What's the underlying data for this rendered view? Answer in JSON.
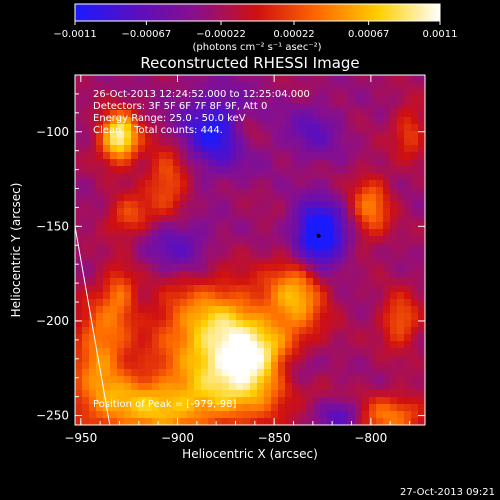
{
  "chart_data": {
    "type": "heatmap",
    "title": "Reconstructed RHESSI Image",
    "xlabel": "Heliocentric X (arcsec)",
    "ylabel": "Heliocentric Y (arcsec)",
    "xlim": [
      -953,
      -772
    ],
    "ylim": [
      -255,
      -70
    ],
    "x_ticks": [
      {
        "value": -950,
        "label": "−950"
      },
      {
        "value": -900,
        "label": "−900"
      },
      {
        "value": -850,
        "label": "−850"
      },
      {
        "value": -800,
        "label": "−800"
      }
    ],
    "y_ticks": [
      {
        "value": -100,
        "label": "−100"
      },
      {
        "value": -150,
        "label": "−150"
      },
      {
        "value": -200,
        "label": "−200"
      },
      {
        "value": -250,
        "label": "−250"
      }
    ],
    "colorbar": {
      "min": -0.0011,
      "max": 0.0011,
      "tick_values": [
        -0.0011,
        -0.00067,
        -0.00022,
        0.00022,
        0.00067,
        0.0011
      ],
      "tick_labels": [
        "−0.0011",
        "−0.00067",
        "−0.00022",
        "0.00022",
        "0.00067",
        "0.0011"
      ],
      "unit_label": "(photons cm⁻² s⁻¹ asec⁻²)",
      "colors": [
        "#1a1aff",
        "#5a0fc0",
        "#8a0f8a",
        "#d01010",
        "#ff6a00",
        "#ffd000",
        "#ffffff"
      ]
    },
    "annotations": {
      "time_range": "26-Oct-2013 12:24:52.000 to 12:25:04.000",
      "detectors": "Detectors: 3F 5F 6F 7F 8F 9F, Att 0",
      "energy_range": "Energy Range: 25.0 - 50.0 keV",
      "clean": "Clean    Total counts: 444.",
      "peak_position": "Position of Peak = [-979,-98]"
    },
    "peak_marker": {
      "x": -827,
      "y": -155
    },
    "limb_line": [
      {
        "x": -953,
        "y": -150
      },
      {
        "x": -935,
        "y": -255
      }
    ],
    "intensity_blobs": [
      {
        "x": -930,
        "y": -103,
        "amp": 1.0,
        "sx": 7,
        "sy": 9
      },
      {
        "x": -880,
        "y": -205,
        "amp": 0.75,
        "sx": 22,
        "sy": 18
      },
      {
        "x": -860,
        "y": -225,
        "amp": 0.8,
        "sx": 18,
        "sy": 14
      },
      {
        "x": -838,
        "y": -185,
        "amp": 0.6,
        "sx": 10,
        "sy": 14
      },
      {
        "x": -910,
        "y": -245,
        "amp": 0.7,
        "sx": 30,
        "sy": 12
      },
      {
        "x": -940,
        "y": -215,
        "amp": 0.55,
        "sx": 10,
        "sy": 18
      },
      {
        "x": -905,
        "y": -125,
        "amp": 0.45,
        "sx": 8,
        "sy": 14
      },
      {
        "x": -925,
        "y": -145,
        "amp": 0.4,
        "sx": 8,
        "sy": 8
      },
      {
        "x": -800,
        "y": -140,
        "amp": 0.5,
        "sx": 7,
        "sy": 12
      },
      {
        "x": -785,
        "y": -200,
        "amp": 0.45,
        "sx": 7,
        "sy": 10
      },
      {
        "x": -790,
        "y": -250,
        "amp": 0.5,
        "sx": 14,
        "sy": 8
      },
      {
        "x": -930,
        "y": -185,
        "amp": 0.4,
        "sx": 6,
        "sy": 10
      },
      {
        "x": -865,
        "y": -100,
        "amp": 0.3,
        "sx": 6,
        "sy": 8
      },
      {
        "x": -780,
        "y": -100,
        "amp": 0.35,
        "sx": 6,
        "sy": 10
      },
      {
        "x": -827,
        "y": -155,
        "amp": -0.9,
        "sx": 9,
        "sy": 12
      },
      {
        "x": -880,
        "y": -100,
        "amp": -0.6,
        "sx": 14,
        "sy": 14
      },
      {
        "x": -840,
        "y": -225,
        "amp": -0.5,
        "sx": 10,
        "sy": 8
      },
      {
        "x": -815,
        "y": -250,
        "amp": -0.45,
        "sx": 8,
        "sy": 6
      },
      {
        "x": -900,
        "y": -160,
        "amp": -0.35,
        "sx": 12,
        "sy": 10
      },
      {
        "x": -830,
        "y": -100,
        "amp": -0.3,
        "sx": 10,
        "sy": 10
      }
    ]
  },
  "footer": {
    "timestamp": "27-Oct-2013 09:21"
  }
}
